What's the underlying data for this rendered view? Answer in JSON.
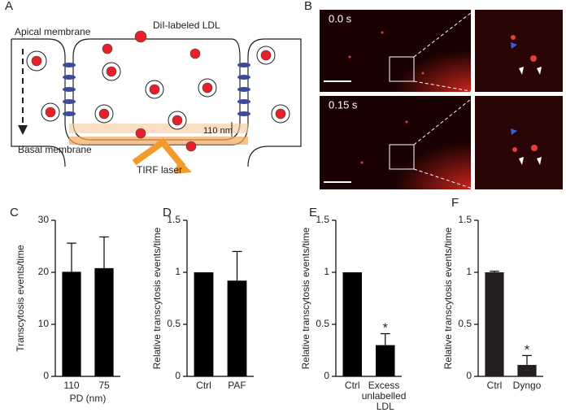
{
  "panels": [
    "A",
    "B",
    "C",
    "D",
    "E",
    "F"
  ],
  "diagram": {
    "apical": "Apical membrane",
    "basal": "Basal membrane",
    "ldl": "DiI-labeled LDL",
    "depth": "110 nm",
    "laser": "TIRF laser"
  },
  "microscopy": {
    "time_labels": [
      "0.0 s",
      "0.15 s"
    ]
  },
  "chart_data": [
    {
      "type": "bar",
      "ylabel": "Transcytosis events/time",
      "xlabel": "PD (nm)",
      "categories": [
        "110",
        "75"
      ],
      "values": [
        20.1,
        20.8
      ],
      "errors": [
        5.5,
        6.0
      ],
      "significance": [
        null,
        null
      ],
      "color": "#000000",
      "ylim": [
        0,
        30
      ],
      "yticks": [
        0,
        10,
        20,
        30
      ]
    },
    {
      "type": "bar",
      "ylabel": "Relative transcytosis events/time",
      "categories": [
        "Ctrl",
        "PAF"
      ],
      "values": [
        1,
        0.92
      ],
      "errors": [
        null,
        0.28
      ],
      "significance": [
        null,
        null
      ],
      "color": "#000000",
      "ylim": [
        0,
        1.5
      ],
      "yticks": [
        0,
        0.5,
        1,
        1.5
      ]
    },
    {
      "type": "bar",
      "ylabel": "Relative transcytosis events/time",
      "categories": [
        "Ctrl",
        "Excess unlabelled LDL"
      ],
      "values": [
        1,
        0.3
      ],
      "errors": [
        null,
        0.11
      ],
      "significance": [
        null,
        "*"
      ],
      "color": "#000000",
      "ylim": [
        0,
        1.5
      ],
      "yticks": [
        0,
        0.5,
        1,
        1.5
      ]
    },
    {
      "type": "bar",
      "ylabel": "Relative transcytosis events/time",
      "categories": [
        "Ctrl",
        "Dyngo"
      ],
      "values": [
        1,
        0.11
      ],
      "errors": [
        0.01,
        0.09
      ],
      "significance": [
        null,
        "*"
      ],
      "color": "#231f20",
      "ylim": [
        0,
        1.5
      ],
      "yticks": [
        0,
        0.5,
        1,
        1.5
      ]
    }
  ]
}
